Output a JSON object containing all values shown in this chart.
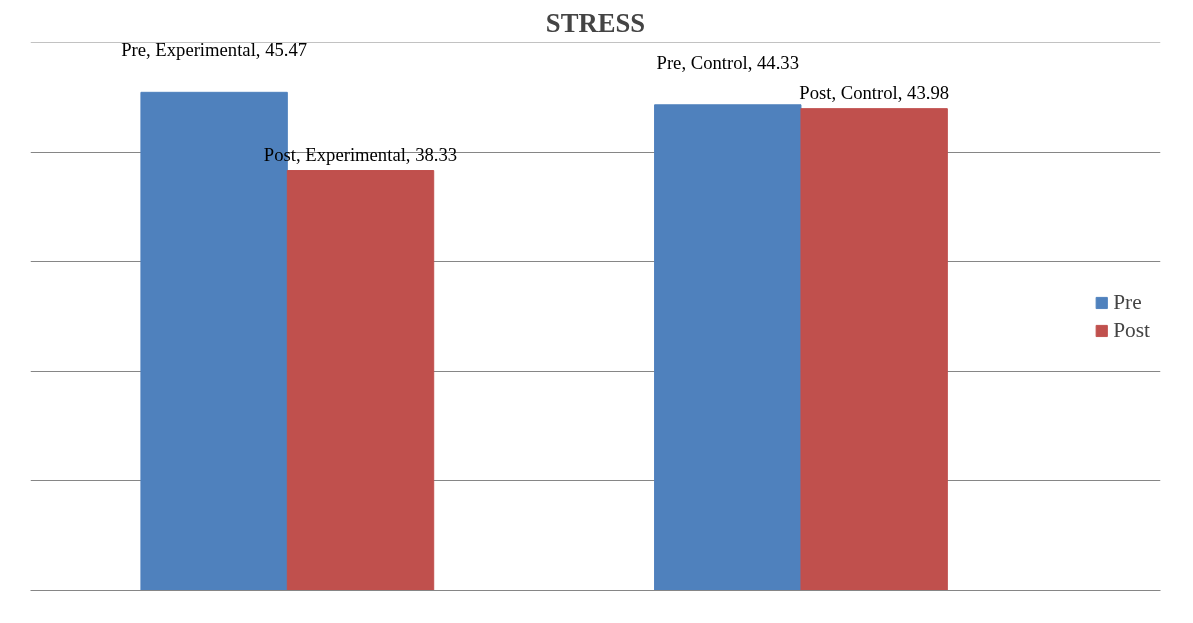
{
  "chart_data": {
    "type": "bar",
    "title": "STRESS",
    "categories": [
      null,
      null
    ],
    "series": [
      {
        "name": "Pre",
        "color": "#4f81bd",
        "values": [
          45.47,
          44.33
        ],
        "value_labels": [
          "Pre, Experimental, 45.47",
          "Pre, Control, 44.33"
        ]
      },
      {
        "name": "Post",
        "color": "#c0504d",
        "values": [
          38.33,
          43.98
        ],
        "value_labels": [
          "Post, Experimental, 38.33",
          "Post, Control, 43.98"
        ]
      }
    ],
    "tick_labels": false,
    "grid": "y",
    "legend": "right"
  }
}
